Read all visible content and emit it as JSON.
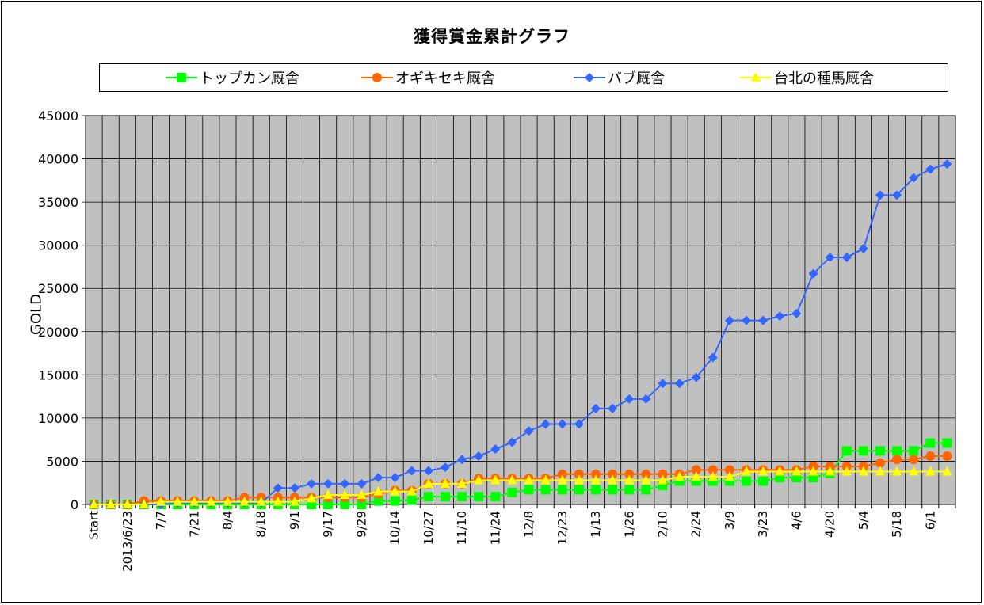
{
  "chart_data": {
    "type": "line",
    "title": "獲得賞金累計グラフ",
    "xlabel": "",
    "ylabel": "GOLD",
    "ylim": [
      0,
      45000
    ],
    "yticks": [
      0,
      5000,
      10000,
      15000,
      20000,
      25000,
      30000,
      35000,
      40000,
      45000
    ],
    "ytick_labels": [
      "0",
      "5000",
      "10000",
      "15000",
      "20000",
      "25000",
      "30000",
      "35000",
      "40000",
      "45000"
    ],
    "grid": true,
    "plot_background": "#c0c0c0",
    "legend_position": "top",
    "x_labels": [
      "Start",
      "",
      "2013/6/23",
      "",
      "7/7",
      "",
      "7/21",
      "",
      "8/4",
      "",
      "8/18",
      "",
      "9/1",
      "",
      "9/17",
      "",
      "9/29",
      "",
      "10/14",
      "",
      "10/27",
      "",
      "11/10",
      "",
      "11/24",
      "",
      "12/8",
      "",
      "12/23",
      "",
      "1/13",
      "",
      "1/26",
      "",
      "2/10",
      "",
      "2/24",
      "",
      "3/9",
      "",
      "3/23",
      "",
      "4/6",
      "",
      "4/20",
      "",
      "5/4",
      "",
      "5/18",
      "",
      "6/1",
      ""
    ],
    "series": [
      {
        "name": "トップカン厩舎",
        "color": "#00ff00",
        "marker": "square",
        "values": [
          0,
          0,
          0,
          0,
          0,
          0,
          0,
          0,
          0,
          0,
          0,
          0,
          0,
          0,
          0,
          0,
          0,
          400,
          400,
          500,
          900,
          900,
          900,
          900,
          900,
          1400,
          1700,
          1700,
          1700,
          1700,
          1700,
          1700,
          1700,
          1700,
          2200,
          2700,
          2700,
          2700,
          2700,
          2700,
          2700,
          3100,
          3100,
          3100,
          3600,
          6200,
          6200,
          6200,
          6200,
          6200,
          7100,
          7100
        ]
      },
      {
        "name": "オギキセキ厩舎",
        "color": "#ff6600",
        "marker": "circle",
        "values": [
          0,
          0,
          0,
          400,
          400,
          400,
          400,
          400,
          400,
          800,
          800,
          800,
          800,
          800,
          800,
          800,
          800,
          1200,
          1600,
          1600,
          2400,
          2400,
          2400,
          3000,
          3000,
          3000,
          3000,
          3000,
          3500,
          3500,
          3500,
          3500,
          3500,
          3500,
          3500,
          3500,
          4000,
          4000,
          4000,
          4000,
          4000,
          4000,
          4000,
          4400,
          4400,
          4400,
          4400,
          4800,
          5200,
          5200,
          5600,
          5600
        ]
      },
      {
        "name": "バブ厩舎",
        "color": "#3366ff",
        "marker": "diamond",
        "values": [
          0,
          0,
          0,
          0,
          0,
          200,
          200,
          200,
          200,
          200,
          200,
          1900,
          1900,
          2400,
          2400,
          2400,
          2400,
          3100,
          3100,
          3900,
          3900,
          4300,
          5200,
          5600,
          6400,
          7200,
          8500,
          9300,
          9300,
          9300,
          11100,
          11100,
          12200,
          12200,
          14000,
          14000,
          14700,
          17000,
          21300,
          21300,
          21300,
          21800,
          22100,
          26700,
          28600,
          28600,
          29600,
          35800,
          35800,
          37800,
          38800,
          39400
        ]
      },
      {
        "name": "台北の種馬厩舎",
        "color": "#ffff00",
        "marker": "triangle",
        "values": [
          0,
          0,
          0,
          0,
          300,
          300,
          300,
          300,
          300,
          300,
          300,
          300,
          300,
          700,
          1100,
          1100,
          1100,
          1500,
          1500,
          1500,
          2400,
          2400,
          2400,
          2800,
          2800,
          2800,
          2800,
          2800,
          2800,
          2800,
          2800,
          2800,
          2800,
          2800,
          2800,
          3200,
          3200,
          3200,
          3200,
          3800,
          3800,
          3800,
          3800,
          3800,
          3800,
          3800,
          3800,
          3800,
          3800,
          3800,
          3800,
          3800
        ]
      }
    ]
  }
}
